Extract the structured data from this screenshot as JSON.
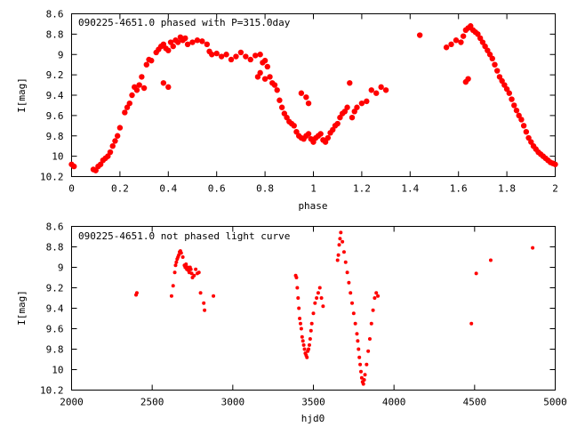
{
  "window": {
    "width": 640,
    "height": 480
  },
  "colors": {
    "points": "#ff0000",
    "axes": "#000000",
    "background": "#ffffff"
  },
  "chart_data": [
    {
      "type": "scatter",
      "title": "090225-4651.0 phased with P=315.0day",
      "xlabel": "phase",
      "ylabel": "I[mag]",
      "xlim": [
        0,
        2
      ],
      "ylim": [
        10.2,
        8.6
      ],
      "y_inverted": true,
      "x_ticks": [
        0,
        0.2,
        0.4,
        0.6,
        0.8,
        1,
        1.2,
        1.4,
        1.6,
        1.8,
        2
      ],
      "x_tick_labels": [
        "0",
        "0.2",
        "0.4",
        "0.6",
        "0.8",
        "1",
        "1.2",
        "1.4",
        "1.6",
        "1.8",
        "2"
      ],
      "y_ticks": [
        8.6,
        8.8,
        9,
        9.2,
        9.4,
        9.6,
        9.8,
        10,
        10.2
      ],
      "y_tick_labels": [
        "8.6",
        "8.8",
        "9",
        "9.2",
        "9.4",
        "9.6",
        "9.8",
        "10",
        "10.2"
      ],
      "grid": false,
      "legend": "none",
      "marker": "filled-circle",
      "series": [
        {
          "x": [
            0.0,
            0.01,
            0.09,
            0.1,
            0.11,
            0.12,
            0.13,
            0.14,
            0.15,
            0.16,
            0.17,
            0.18,
            0.19,
            0.2,
            0.22,
            0.23,
            0.24,
            0.25,
            0.26,
            0.27,
            0.29,
            0.31,
            0.32,
            0.33,
            0.35,
            0.36,
            0.37,
            0.38,
            0.39,
            0.4,
            0.41,
            0.42,
            0.43,
            0.44,
            0.45,
            0.46,
            0.47,
            0.48,
            0.5,
            0.52,
            0.54,
            0.56,
            0.57,
            0.58,
            0.6,
            0.62,
            0.64,
            0.66,
            0.68,
            0.7,
            0.72,
            0.74,
            0.76,
            0.78,
            0.79,
            0.8,
            0.81,
            0.82,
            0.83,
            0.84,
            0.85,
            0.86,
            0.87,
            0.88,
            0.89,
            0.9,
            0.91,
            0.92,
            0.93,
            0.94,
            0.95,
            0.96,
            0.97,
            0.98,
            0.99,
            1.0,
            1.01,
            1.02,
            1.03,
            1.04,
            1.05,
            1.06,
            1.07,
            1.08,
            1.09,
            1.1,
            1.11,
            1.12,
            1.13,
            1.14,
            1.15,
            1.16,
            1.17,
            1.18,
            1.2,
            1.22,
            1.24,
            1.26,
            1.28,
            1.3,
            1.44,
            1.55,
            1.57,
            1.59,
            1.61,
            1.62,
            1.63,
            1.64,
            1.65,
            1.66,
            1.67,
            1.68,
            1.69,
            1.7,
            1.71,
            1.72,
            1.73,
            1.74,
            1.75,
            1.76,
            1.77,
            1.78,
            1.79,
            1.8,
            1.81,
            1.82,
            1.83,
            1.84,
            1.85,
            1.86,
            1.87,
            1.88,
            1.89,
            1.9,
            1.91,
            1.92,
            1.93,
            1.94,
            1.95,
            1.96,
            1.97,
            1.98,
            1.99,
            2.0,
            0.38,
            0.4,
            0.77,
            0.78,
            0.8,
            0.95,
            0.97,
            0.98,
            1.63,
            1.64,
            0.28,
            0.3
          ],
          "y": [
            10.08,
            10.1,
            10.13,
            10.14,
            10.1,
            10.08,
            10.04,
            10.02,
            10.0,
            9.96,
            9.9,
            9.85,
            9.8,
            9.72,
            9.57,
            9.52,
            9.48,
            9.4,
            9.32,
            9.35,
            9.22,
            9.1,
            9.05,
            9.06,
            8.98,
            8.95,
            8.92,
            8.9,
            8.94,
            8.96,
            8.88,
            8.92,
            8.86,
            8.88,
            8.83,
            8.86,
            8.84,
            8.9,
            8.88,
            8.86,
            8.87,
            8.9,
            8.97,
            9.0,
            8.99,
            9.02,
            9.0,
            9.05,
            9.02,
            8.98,
            9.02,
            9.05,
            9.01,
            9.0,
            9.08,
            9.06,
            9.12,
            9.22,
            9.28,
            9.3,
            9.35,
            9.45,
            9.52,
            9.58,
            9.62,
            9.66,
            9.68,
            9.7,
            9.76,
            9.8,
            9.82,
            9.83,
            9.8,
            9.78,
            9.83,
            9.86,
            9.82,
            9.8,
            9.78,
            9.84,
            9.86,
            9.82,
            9.77,
            9.74,
            9.7,
            9.68,
            9.62,
            9.58,
            9.56,
            9.52,
            9.28,
            9.62,
            9.56,
            9.52,
            9.48,
            9.46,
            9.35,
            9.38,
            9.32,
            9.35,
            8.81,
            8.93,
            8.9,
            8.86,
            8.88,
            8.82,
            8.76,
            8.74,
            8.72,
            8.76,
            8.78,
            8.8,
            8.84,
            8.88,
            8.92,
            8.96,
            9.0,
            9.04,
            9.1,
            9.16,
            9.22,
            9.26,
            9.3,
            9.34,
            9.38,
            9.44,
            9.5,
            9.55,
            9.6,
            9.64,
            9.7,
            9.76,
            9.82,
            9.86,
            9.9,
            9.93,
            9.96,
            9.98,
            10.0,
            10.02,
            10.04,
            10.06,
            10.07,
            10.08,
            9.28,
            9.32,
            9.22,
            9.18,
            9.24,
            9.38,
            9.42,
            9.48,
            9.27,
            9.24,
            9.3,
            9.33
          ]
        }
      ]
    },
    {
      "type": "scatter",
      "title": "090225-4651.0 not phased light curve",
      "xlabel": "hjd0",
      "ylabel": "I[mag]",
      "xlim": [
        2000,
        5000
      ],
      "ylim": [
        10.2,
        8.6
      ],
      "y_inverted": true,
      "x_ticks": [
        2000,
        2500,
        3000,
        3500,
        4000,
        4500,
        5000
      ],
      "x_tick_labels": [
        "2000",
        "2500",
        "3000",
        "3500",
        "4000",
        "4500",
        "5000"
      ],
      "y_ticks": [
        8.6,
        8.8,
        9,
        9.2,
        9.4,
        9.6,
        9.8,
        10,
        10.2
      ],
      "y_tick_labels": [
        "8.6",
        "8.8",
        "9",
        "9.2",
        "9.4",
        "9.6",
        "9.8",
        "10",
        "10.2"
      ],
      "grid": false,
      "legend": "none",
      "marker": "filled-circle",
      "series": [
        {
          "x": [
            2400,
            2405,
            2620,
            2630,
            2640,
            2645,
            2650,
            2655,
            2660,
            2665,
            2670,
            2675,
            2680,
            2690,
            2700,
            2705,
            2710,
            2715,
            2720,
            2725,
            2730,
            2735,
            2740,
            2745,
            2750,
            2760,
            2770,
            2780,
            2790,
            2800,
            2820,
            2825,
            2880,
            3390,
            3395,
            3400,
            3405,
            3410,
            3415,
            3420,
            3425,
            3430,
            3435,
            3440,
            3445,
            3450,
            3455,
            3460,
            3465,
            3470,
            3475,
            3480,
            3485,
            3490,
            3500,
            3510,
            3520,
            3530,
            3540,
            3550,
            3560,
            3650,
            3655,
            3660,
            3665,
            3670,
            3680,
            3690,
            3700,
            3710,
            3720,
            3730,
            3740,
            3750,
            3760,
            3770,
            3775,
            3780,
            3785,
            3790,
            3795,
            3800,
            3805,
            3810,
            3815,
            3820,
            3830,
            3840,
            3850,
            3860,
            3870,
            3880,
            3890,
            3900,
            4480,
            4510,
            4600,
            4860
          ],
          "y": [
            9.27,
            9.25,
            9.28,
            9.18,
            9.05,
            8.98,
            8.95,
            8.92,
            8.9,
            8.88,
            8.85,
            8.84,
            8.86,
            8.9,
            8.98,
            9.0,
            8.97,
            9.02,
            9.0,
            9.03,
            9.05,
            9.0,
            9.02,
            9.06,
            9.1,
            9.08,
            9.02,
            9.06,
            9.05,
            9.25,
            9.35,
            9.42,
            9.28,
            9.08,
            9.1,
            9.2,
            9.3,
            9.4,
            9.5,
            9.55,
            9.6,
            9.68,
            9.72,
            9.76,
            9.8,
            9.84,
            9.86,
            9.88,
            9.82,
            9.8,
            9.76,
            9.7,
            9.62,
            9.55,
            9.45,
            9.35,
            9.3,
            9.25,
            9.2,
            9.3,
            9.38,
            8.93,
            8.88,
            8.78,
            8.72,
            8.66,
            8.75,
            8.85,
            8.95,
            9.05,
            9.15,
            9.25,
            9.35,
            9.45,
            9.55,
            9.65,
            9.72,
            9.8,
            9.88,
            9.95,
            10.02,
            10.08,
            10.12,
            10.14,
            10.1,
            10.05,
            9.95,
            9.82,
            9.7,
            9.55,
            9.42,
            9.3,
            9.25,
            9.28,
            9.55,
            9.06,
            8.93,
            8.81
          ]
        }
      ]
    }
  ]
}
